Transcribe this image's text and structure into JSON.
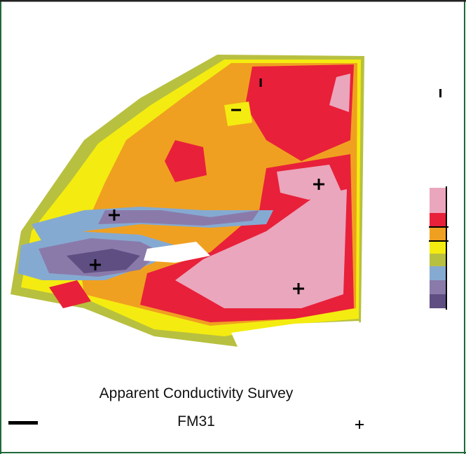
{
  "map": {
    "title": "Apparent Conductivity Survey",
    "subtitle": "FM31"
  }
}
